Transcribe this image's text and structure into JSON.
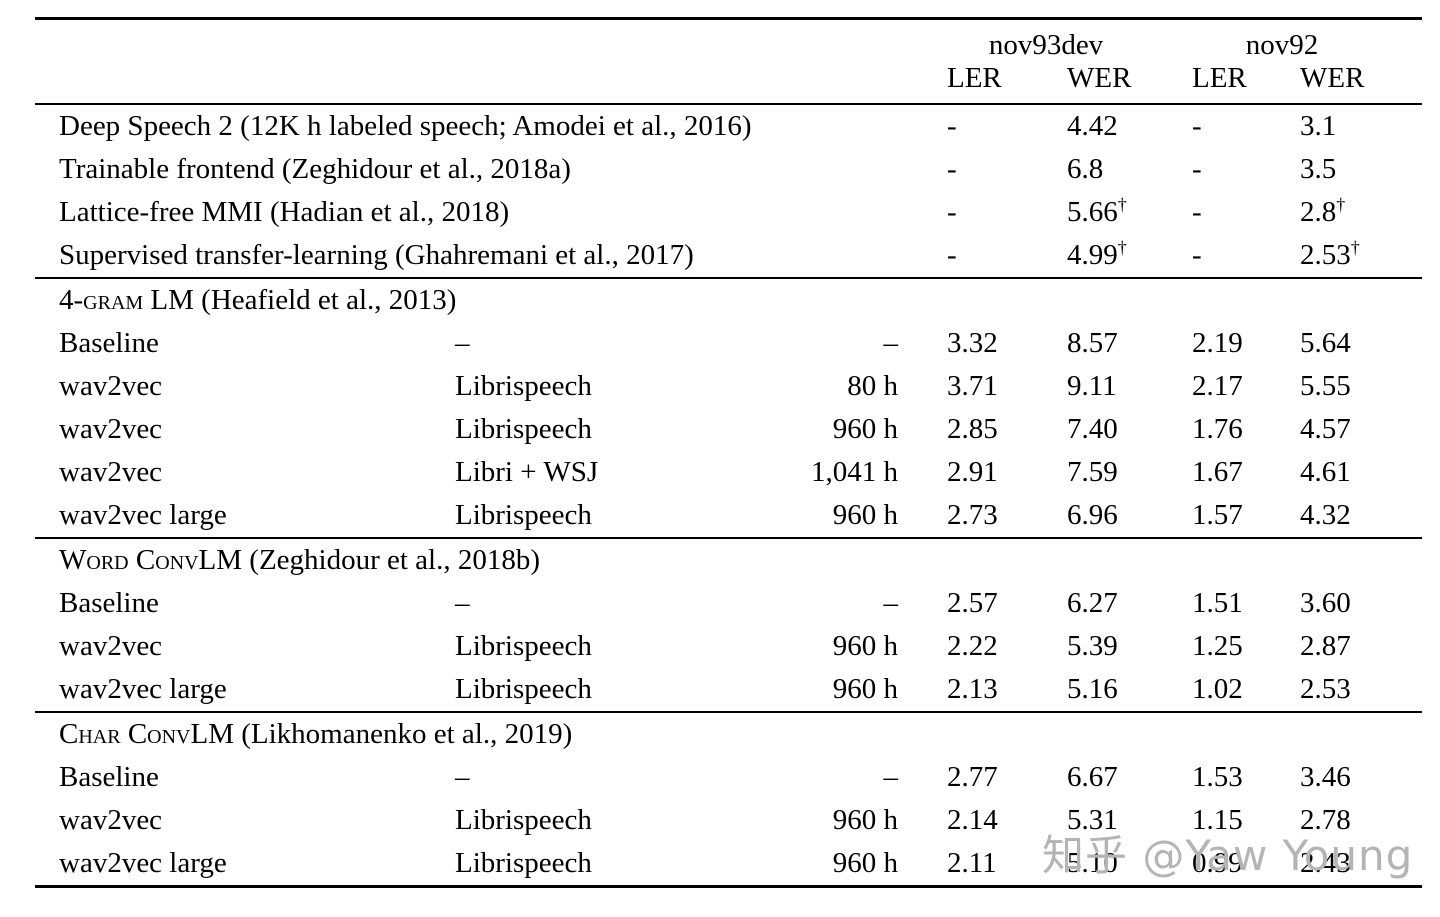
{
  "watermark": {
    "text": "知乎 @Yaw Young",
    "color": "#b4b4b4"
  },
  "table": {
    "dagger": "†",
    "col_groups": [
      {
        "label": "nov93dev"
      },
      {
        "label": "nov92"
      }
    ],
    "sub_headers": [
      "LER",
      "WER",
      "LER",
      "WER"
    ],
    "sections": [
      {
        "heading": null,
        "rows": [
          {
            "model": "Deep Speech 2 (12K h labeled speech; Amodei et al., 2016)",
            "data": "",
            "hours": "",
            "ler93": "-",
            "wer93": "4.42",
            "ler92": "-",
            "wer92": "3.1"
          },
          {
            "model": "Trainable frontend (Zeghidour et al., 2018a)",
            "data": "",
            "hours": "",
            "ler93": "-",
            "wer93": "6.8",
            "ler92": "-",
            "wer92": "3.5"
          },
          {
            "model": "Lattice-free MMI (Hadian et al., 2018)",
            "data": "",
            "hours": "",
            "ler93": "-",
            "wer93": "5.66†",
            "ler92": "-",
            "wer92": "2.8†"
          },
          {
            "model": "Supervised transfer-learning (Ghahremani et al., 2017)",
            "data": "",
            "hours": "",
            "ler93": "-",
            "wer93": "4.99†",
            "ler92": "-",
            "wer92": "2.53†"
          }
        ]
      },
      {
        "heading": {
          "name": "4-gram LM",
          "cite": " (Heafield et al., 2013)"
        },
        "rows": [
          {
            "model": "Baseline",
            "data": "–",
            "hours": "–",
            "ler93": "3.32",
            "wer93": "8.57",
            "ler92": "2.19",
            "wer92": "5.64"
          },
          {
            "model": "wav2vec",
            "data": "Librispeech",
            "hours": "80 h",
            "ler93": "3.71",
            "wer93": "9.11",
            "ler92": "2.17",
            "wer92": "5.55"
          },
          {
            "model": "wav2vec",
            "data": "Librispeech",
            "hours": "960 h",
            "ler93": "2.85",
            "wer93": "7.40",
            "ler92": "1.76",
            "wer92": "4.57"
          },
          {
            "model": "wav2vec",
            "data": "Libri + WSJ",
            "hours": "1,041 h",
            "ler93": "2.91",
            "wer93": "7.59",
            "ler92": "1.67",
            "wer92": "4.61"
          },
          {
            "model": "wav2vec large",
            "data": "Librispeech",
            "hours": "960 h",
            "ler93": "2.73",
            "wer93": "6.96",
            "ler92": "1.57",
            "wer92": "4.32"
          }
        ]
      },
      {
        "heading": {
          "name": "Word ConvLM",
          "cite": " (Zeghidour et al., 2018b)"
        },
        "rows": [
          {
            "model": "Baseline",
            "data": "–",
            "hours": "–",
            "ler93": "2.57",
            "wer93": "6.27",
            "ler92": "1.51",
            "wer92": "3.60"
          },
          {
            "model": "wav2vec",
            "data": "Librispeech",
            "hours": "960 h",
            "ler93": "2.22",
            "wer93": "5.39",
            "ler92": "1.25",
            "wer92": "2.87"
          },
          {
            "model": "wav2vec large",
            "data": "Librispeech",
            "hours": "960 h",
            "ler93": "2.13",
            "wer93": "5.16",
            "ler92": "1.02",
            "wer92": "2.53"
          }
        ]
      },
      {
        "heading": {
          "name": "Char ConvLM",
          "cite": " (Likhomanenko et al., 2019)"
        },
        "rows": [
          {
            "model": "Baseline",
            "data": "–",
            "hours": "–",
            "ler93": "2.77",
            "wer93": "6.67",
            "ler92": "1.53",
            "wer92": "3.46"
          },
          {
            "model": "wav2vec",
            "data": "Librispeech",
            "hours": "960 h",
            "ler93": "2.14",
            "wer93": "5.31",
            "ler92": "1.15",
            "wer92": "2.78"
          },
          {
            "model": "wav2vec large",
            "data": "Librispeech",
            "hours": "960 h",
            "ler93": "2.11",
            "wer93": "5.10",
            "ler92": "0.99",
            "wer92": "2.43"
          }
        ]
      }
    ]
  }
}
